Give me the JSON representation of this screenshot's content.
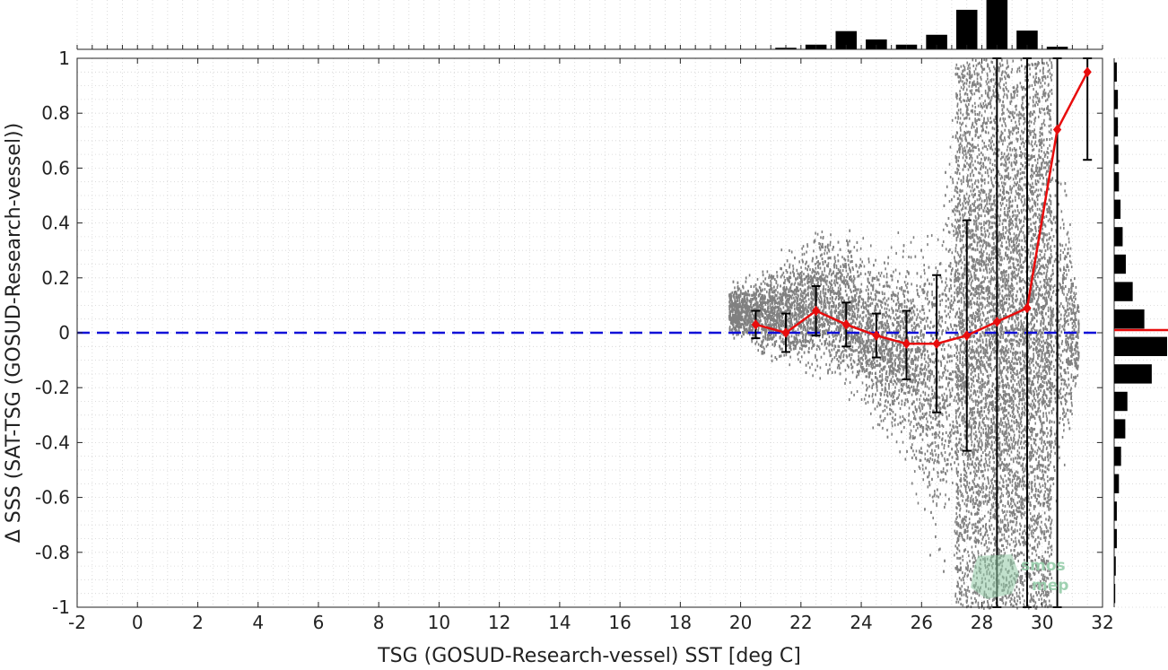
{
  "chart_data": {
    "type": "scatter",
    "xlabel": "TSG (GOSUD-Research-vessel) SST [deg C]",
    "ylabel": "Δ SSS (SAT-TSG (GOSUD-Research-vessel))",
    "xlim": [
      -2,
      32
    ],
    "ylim": [
      -1,
      1
    ],
    "xticks": [
      "-2",
      "0",
      "2",
      "4",
      "6",
      "8",
      "10",
      "12",
      "14",
      "16",
      "18",
      "20",
      "22",
      "24",
      "26",
      "28",
      "30",
      "32"
    ],
    "yticks": [
      "-1",
      "-0.8",
      "-0.6",
      "-0.4",
      "-0.2",
      "0",
      "0.2",
      "0.4",
      "0.6",
      "0.8",
      "1"
    ],
    "grid": "dotted",
    "zero_line": {
      "y": 0,
      "color": "#1010d8",
      "style": "dashed"
    },
    "bin_means": {
      "color": "#e80c0c",
      "x": [
        20.5,
        21.5,
        22.5,
        23.5,
        24.5,
        25.5,
        26.5,
        27.5,
        28.5,
        29.5,
        30.5,
        31.5
      ],
      "mean": [
        0.03,
        0.0,
        0.08,
        0.03,
        -0.01,
        -0.04,
        -0.04,
        -0.01,
        0.04,
        0.09,
        0.74,
        0.95
      ],
      "err_low": [
        -0.02,
        -0.07,
        -0.01,
        -0.05,
        -0.09,
        -0.17,
        -0.29,
        -0.43,
        -1.0,
        -1.0,
        -1.0,
        0.63
      ],
      "err_high": [
        0.08,
        0.07,
        0.17,
        0.11,
        0.07,
        0.08,
        0.21,
        0.41,
        1.0,
        1.0,
        1.0,
        1.0
      ]
    },
    "scatter_envelope": {
      "color": "#808080",
      "x": [
        19.6,
        20.5,
        21.5,
        22.5,
        23.5,
        24.5,
        25.5,
        26.5,
        27.0,
        27.5,
        28.5,
        29.5,
        30.5,
        31.2
      ],
      "low": [
        -0.02,
        -0.1,
        -0.18,
        -0.22,
        -0.25,
        -0.4,
        -0.55,
        -0.95,
        -1.0,
        -1.0,
        -1.0,
        -1.0,
        -0.85,
        -0.2
      ],
      "high": [
        0.2,
        0.24,
        0.33,
        0.44,
        0.43,
        0.35,
        0.4,
        0.5,
        1.0,
        1.0,
        1.0,
        1.0,
        0.95,
        0.15
      ]
    },
    "top_histogram": {
      "bins": [
        21.5,
        22.5,
        23.5,
        24.5,
        25.5,
        26.5,
        27.5,
        28.5,
        29.5,
        30.5
      ],
      "counts": [
        0.03,
        0.09,
        0.35,
        0.19,
        0.09,
        0.28,
        0.76,
        1.0,
        0.36,
        0.05
      ]
    },
    "right_histogram": {
      "bins": [
        0.95,
        0.85,
        0.75,
        0.65,
        0.55,
        0.45,
        0.35,
        0.25,
        0.15,
        0.05,
        -0.05,
        -0.15,
        -0.25,
        -0.35,
        -0.45,
        -0.55,
        -0.65,
        -0.75,
        -0.85,
        -0.95
      ],
      "counts": [
        0.05,
        0.07,
        0.07,
        0.08,
        0.09,
        0.12,
        0.16,
        0.22,
        0.35,
        0.57,
        1.0,
        0.71,
        0.25,
        0.21,
        0.13,
        0.09,
        0.05,
        0.05,
        0.03,
        0.02
      ],
      "mean_line_color": "#e80c0c",
      "mean_line_y": 0.01
    }
  },
  "watermark": {
    "line1": "smos",
    "line2": "mep"
  }
}
